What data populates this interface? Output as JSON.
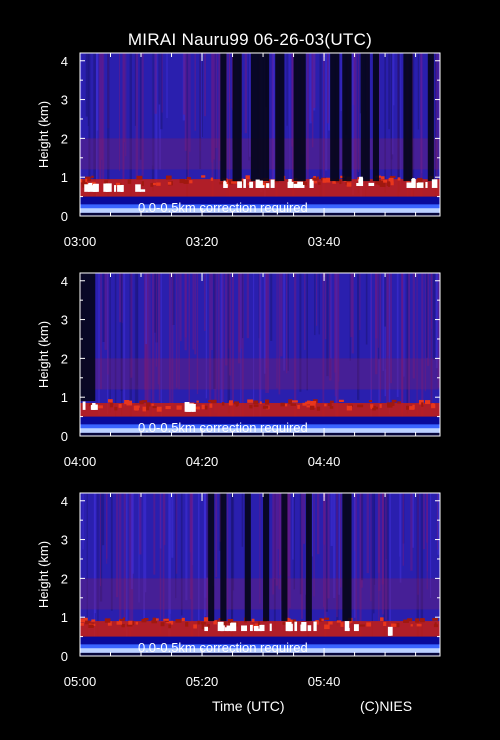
{
  "title": "MIRAI Nauru99 06-26-03(UTC)",
  "footer": {
    "xlabel": "Time (UTC)",
    "credit": "(C)NIES"
  },
  "colors": {
    "background": "#000000",
    "foreground": "#ffffff",
    "noise": "#2a1fae",
    "signal": "#c81e10",
    "cloud": "#ffffff"
  },
  "chart_data": [
    {
      "type": "heatmap",
      "title": "",
      "ylabel": "Height (km)",
      "xlabel": "",
      "yticks": [
        "0",
        "1",
        "2",
        "3",
        "4"
      ],
      "ylim": [
        0,
        4.2
      ],
      "xlim": [
        0,
        59
      ],
      "xticks": [
        {
          "m": 0,
          "label": "03:00"
        },
        {
          "m": 20,
          "label": "03:20"
        },
        {
          "m": 40,
          "label": "03:40"
        }
      ],
      "annotation": "0.0-0.5km correction required",
      "boundary_layer_km": 0.7,
      "dark_columns": [
        [
          23,
          24
        ],
        [
          25,
          26.5
        ],
        [
          28,
          31
        ],
        [
          32,
          33.5
        ],
        [
          35,
          37
        ],
        [
          41,
          42.5
        ],
        [
          43,
          44.5
        ],
        [
          46,
          47.5
        ],
        [
          48,
          49
        ],
        [
          53,
          54.5
        ],
        [
          57,
          58
        ]
      ],
      "clouds": [
        {
          "from": 23,
          "to": 38,
          "km": 0.8
        },
        {
          "from": 44,
          "to": 48,
          "km": 0.85
        },
        {
          "from": 53,
          "to": 58,
          "km": 0.8
        },
        {
          "from": 0,
          "to": 10,
          "km": 0.7
        }
      ]
    },
    {
      "type": "heatmap",
      "title": "",
      "ylabel": "Height (km)",
      "xlabel": "",
      "yticks": [
        "0",
        "1",
        "2",
        "3",
        "4"
      ],
      "ylim": [
        0,
        4.2
      ],
      "xlim": [
        0,
        59
      ],
      "xticks": [
        {
          "m": 0,
          "label": "04:00"
        },
        {
          "m": 20,
          "label": "04:20"
        },
        {
          "m": 40,
          "label": "04:40"
        }
      ],
      "annotation": "0.0-0.5km correction required",
      "boundary_layer_km": 0.6,
      "dark_columns": [
        [
          0,
          2.5
        ]
      ],
      "clouds": [
        {
          "from": 0,
          "to": 2.5,
          "km": 0.75
        },
        {
          "from": 16,
          "to": 18.5,
          "km": 0.7
        }
      ]
    },
    {
      "type": "heatmap",
      "title": "",
      "ylabel": "Height (km)",
      "xlabel": "",
      "yticks": [
        "0",
        "1",
        "2",
        "3",
        "4"
      ],
      "ylim": [
        0,
        4.2
      ],
      "xlim": [
        0,
        59
      ],
      "xticks": [
        {
          "m": 0,
          "label": "05:00"
        },
        {
          "m": 20,
          "label": "05:20"
        },
        {
          "m": 40,
          "label": "05:40"
        }
      ],
      "annotation": "0.0-0.5km correction required",
      "boundary_layer_km": 0.65,
      "dark_columns": [
        [
          21,
          22
        ],
        [
          23,
          24
        ],
        [
          27,
          28
        ],
        [
          30,
          31
        ],
        [
          33,
          34
        ],
        [
          37,
          38
        ],
        [
          43,
          44.5
        ]
      ],
      "clouds": [
        {
          "from": 20,
          "to": 30,
          "km": 0.72
        },
        {
          "from": 31,
          "to": 39,
          "km": 0.72
        },
        {
          "from": 43,
          "to": 45,
          "km": 0.72
        },
        {
          "from": 50,
          "to": 51,
          "km": 0.6
        }
      ]
    }
  ]
}
